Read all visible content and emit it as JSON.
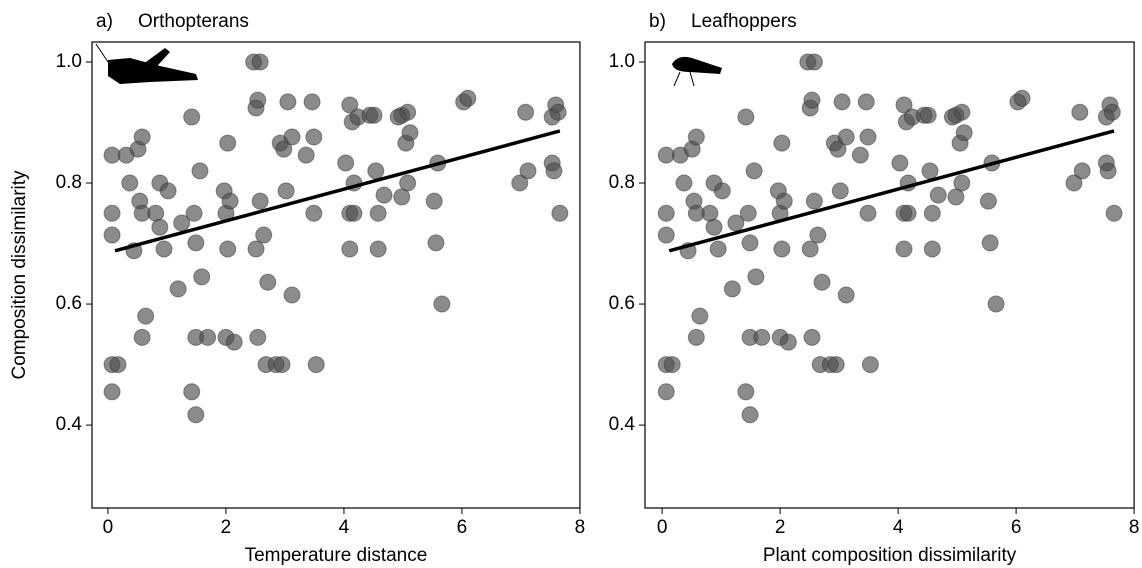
{
  "chart_data": [
    {
      "type": "scatter",
      "panel_label": "a)",
      "title": "Orthopterans",
      "xlabel": "Temperature distance",
      "ylabel": "Composition dissimilarity",
      "xlim": [
        -0.27,
        8.0
      ],
      "ylim": [
        0.263,
        1.033
      ],
      "xticks": [
        0,
        2,
        4,
        6,
        8
      ],
      "yticks": [
        0.4,
        0.6,
        0.8,
        {
          "value": 1,
          "label": "1.0"
        }
      ],
      "color": "#4d4d4d",
      "x": [
        0.07,
        0.07,
        0.07,
        0.07,
        0.07,
        0.17,
        0.31,
        0.37,
        0.44,
        0.51,
        0.54,
        0.58,
        0.58,
        0.64,
        0.58,
        0.81,
        0.88,
        0.88,
        0.95,
        1.02,
        1.19,
        1.25,
        1.42,
        1.46,
        1.49,
        1.49,
        1.42,
        1.49,
        1.56,
        1.59,
        1.69,
        1.97,
        2.0,
        2.03,
        2.0,
        2.07,
        2.14,
        2.03,
        2.47,
        2.58,
        2.51,
        2.54,
        2.51,
        2.54,
        2.58,
        2.64,
        2.68,
        2.71,
        2.85,
        2.95,
        2.92,
        2.98,
        3.02,
        3.05,
        3.12,
        3.12,
        3.36,
        3.46,
        3.49,
        3.53,
        3.49,
        4.1,
        4.14,
        4.03,
        4.1,
        4.1,
        4.17,
        4.17,
        4.24,
        4.44,
        4.51,
        4.54,
        4.58,
        4.58,
        4.68,
        4.98,
        5.08,
        5.05,
        5.08,
        4.98,
        5.12,
        4.92,
        5.56,
        5.59,
        5.53,
        5.66,
        6.03,
        6.1,
        6.98,
        7.08,
        7.12,
        7.53,
        7.56,
        7.59,
        7.53,
        7.66,
        7.63
      ],
      "values": [
        0.846,
        0.75,
        0.714,
        0.5,
        0.455,
        0.5,
        0.846,
        0.8,
        0.688,
        0.856,
        0.77,
        0.876,
        0.75,
        0.58,
        0.545,
        0.75,
        0.8,
        0.727,
        0.691,
        0.787,
        0.625,
        0.734,
        0.909,
        0.75,
        0.701,
        0.545,
        0.455,
        0.417,
        0.82,
        0.645,
        0.545,
        0.787,
        0.75,
        0.691,
        0.545,
        0.77,
        0.537,
        0.866,
        1.0,
        1.0,
        0.924,
        0.937,
        0.691,
        0.545,
        0.77,
        0.714,
        0.5,
        0.636,
        0.5,
        0.5,
        0.866,
        0.856,
        0.787,
        0.934,
        0.876,
        0.615,
        0.846,
        0.934,
        0.876,
        0.5,
        0.75,
        0.929,
        0.901,
        0.833,
        0.691,
        0.75,
        0.75,
        0.8,
        0.909,
        0.912,
        0.912,
        0.82,
        0.691,
        0.75,
        0.78,
        0.912,
        0.917,
        0.866,
        0.8,
        0.777,
        0.883,
        0.909,
        0.701,
        0.833,
        0.77,
        0.6,
        0.934,
        0.94,
        0.8,
        0.917,
        0.82,
        0.833,
        0.82,
        0.929,
        0.909,
        0.75,
        0.917
      ],
      "trend_line": {
        "x": [
          0.12,
          7.66
        ],
        "y": [
          0.688,
          0.886
        ]
      }
    },
    {
      "type": "scatter",
      "panel_label": "b)",
      "title": "Leafhoppers",
      "xlabel": "Plant composition dissimilarity",
      "xlim": [
        -0.29,
        8.0
      ],
      "ylim": [
        0.263,
        1.033
      ],
      "xticks": [
        0,
        2,
        4,
        6,
        8
      ],
      "yticks": [
        0.4,
        0.6,
        0.8,
        {
          "value": 1,
          "label": "1.0"
        }
      ],
      "color": "#4d4d4d",
      "x": [
        0.07,
        0.07,
        0.07,
        0.07,
        0.07,
        0.17,
        0.31,
        0.37,
        0.44,
        0.51,
        0.54,
        0.58,
        0.58,
        0.64,
        0.58,
        0.81,
        0.88,
        0.88,
        0.95,
        1.02,
        1.19,
        1.25,
        1.42,
        1.46,
        1.49,
        1.49,
        1.42,
        1.49,
        1.56,
        1.59,
        1.69,
        1.97,
        2.0,
        2.03,
        2.0,
        2.07,
        2.14,
        2.03,
        2.47,
        2.58,
        2.51,
        2.54,
        2.51,
        2.54,
        2.58,
        2.64,
        2.68,
        2.71,
        2.85,
        2.95,
        2.92,
        2.98,
        3.02,
        3.05,
        3.12,
        3.12,
        3.36,
        3.46,
        3.49,
        3.53,
        3.49,
        4.1,
        4.14,
        4.03,
        4.1,
        4.1,
        4.17,
        4.17,
        4.24,
        4.44,
        4.51,
        4.54,
        4.58,
        4.58,
        4.68,
        4.98,
        5.08,
        5.05,
        5.08,
        4.98,
        5.12,
        4.92,
        5.56,
        5.59,
        5.53,
        5.66,
        6.03,
        6.1,
        6.98,
        7.08,
        7.12,
        7.53,
        7.56,
        7.59,
        7.53,
        7.66,
        7.63
      ],
      "values": [
        0.846,
        0.75,
        0.714,
        0.5,
        0.455,
        0.5,
        0.846,
        0.8,
        0.688,
        0.856,
        0.77,
        0.876,
        0.75,
        0.58,
        0.545,
        0.75,
        0.8,
        0.727,
        0.691,
        0.787,
        0.625,
        0.734,
        0.909,
        0.75,
        0.701,
        0.545,
        0.455,
        0.417,
        0.82,
        0.645,
        0.545,
        0.787,
        0.75,
        0.691,
        0.545,
        0.77,
        0.537,
        0.866,
        1.0,
        1.0,
        0.924,
        0.937,
        0.691,
        0.545,
        0.77,
        0.714,
        0.5,
        0.636,
        0.5,
        0.5,
        0.866,
        0.856,
        0.787,
        0.934,
        0.876,
        0.615,
        0.846,
        0.934,
        0.876,
        0.5,
        0.75,
        0.929,
        0.901,
        0.833,
        0.691,
        0.75,
        0.75,
        0.8,
        0.909,
        0.912,
        0.912,
        0.82,
        0.691,
        0.75,
        0.78,
        0.912,
        0.917,
        0.866,
        0.8,
        0.777,
        0.883,
        0.909,
        0.701,
        0.833,
        0.77,
        0.6,
        0.934,
        0.94,
        0.8,
        0.917,
        0.82,
        0.833,
        0.82,
        0.929,
        0.909,
        0.75,
        0.917
      ],
      "trend_line": {
        "x": [
          0.12,
          7.66
        ],
        "y": [
          0.688,
          0.886
        ]
      }
    }
  ]
}
